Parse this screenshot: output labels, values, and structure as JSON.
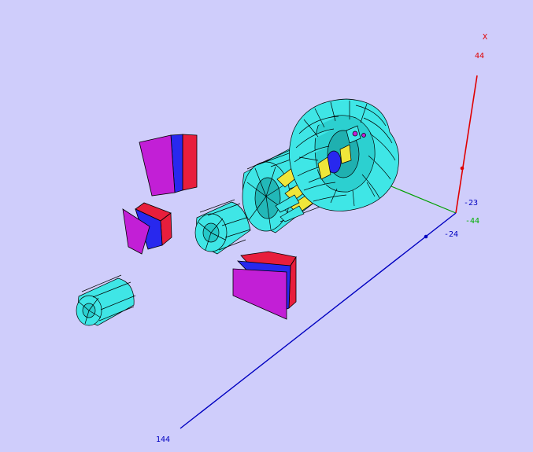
{
  "viewer": {
    "background_color": "#cfcdfb",
    "axes": {
      "x": {
        "name": "X",
        "max_label": "44",
        "color": "#e00000"
      },
      "y": {
        "min_label": "-44",
        "color": "#00b000"
      },
      "z": {
        "max_label": "144",
        "min_label": "-24",
        "mid_label": "-23",
        "color": "#0000c0"
      }
    },
    "colors": {
      "cyan_module": "#3fe6e6",
      "magenta_plate": "#c21fd6",
      "blue_plate": "#2828ee",
      "red_plate": "#e81e3c",
      "yellow_layer": "#efe63a",
      "edge": "#000000"
    }
  }
}
